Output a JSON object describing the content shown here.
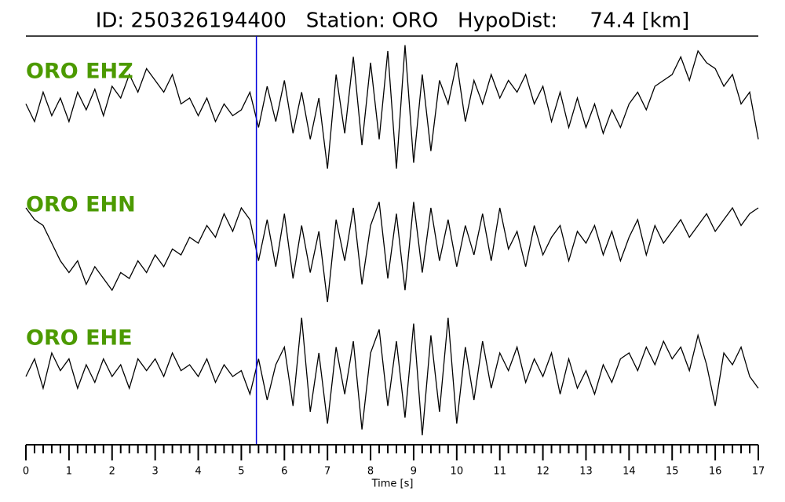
{
  "chart_data": {
    "type": "seismogram",
    "title": "ID: 250326194400   Station: ORO   HypoDist:     74.4 [km]",
    "xlabel": "Time [s]",
    "xlim": [
      0,
      17
    ],
    "xticks": [
      0,
      1,
      2,
      3,
      4,
      5,
      6,
      7,
      8,
      9,
      10,
      11,
      12,
      13,
      14,
      15,
      16,
      17
    ],
    "minor_per_major": 5,
    "ylim": [
      -1,
      1
    ],
    "pick_x": 5.35,
    "pick_color": "#0000dd",
    "label_color": "#4c9a00",
    "x": [
      0,
      0.2,
      0.4,
      0.6,
      0.8,
      1,
      1.2,
      1.4,
      1.6,
      1.8,
      2,
      2.2,
      2.4,
      2.6,
      2.8,
      3,
      3.2,
      3.4,
      3.6,
      3.8,
      4,
      4.2,
      4.4,
      4.6,
      4.8,
      5,
      5.2,
      5.4,
      5.6,
      5.8,
      6,
      6.2,
      6.4,
      6.6,
      6.8,
      7,
      7.2,
      7.4,
      7.6,
      7.8,
      8,
      8.2,
      8.4,
      8.6,
      8.8,
      9,
      9.2,
      9.4,
      9.6,
      9.8,
      10,
      10.2,
      10.4,
      10.6,
      10.8,
      11,
      11.2,
      11.4,
      11.6,
      11.8,
      12,
      12.2,
      12.4,
      12.6,
      12.8,
      13,
      13.2,
      13.4,
      13.6,
      13.8,
      14,
      14.2,
      14.4,
      14.6,
      14.8,
      15,
      15.2,
      15.4,
      15.6,
      15.8,
      16,
      16.2,
      16.4,
      16.6,
      16.8,
      17
    ],
    "series": [
      {
        "name": "ORO EHZ",
        "color": "#000000",
        "values": [
          0.1,
          -0.2,
          0.3,
          -0.1,
          0.2,
          -0.2,
          0.3,
          0.0,
          0.35,
          -0.1,
          0.4,
          0.2,
          0.6,
          0.3,
          0.7,
          0.5,
          0.3,
          0.6,
          0.1,
          0.2,
          -0.1,
          0.2,
          -0.2,
          0.1,
          -0.1,
          0.0,
          0.3,
          -0.3,
          0.4,
          -0.2,
          0.5,
          -0.4,
          0.3,
          -0.5,
          0.2,
          -1.0,
          0.6,
          -0.4,
          0.9,
          -0.6,
          0.8,
          -0.5,
          1.0,
          -1.0,
          1.1,
          -0.9,
          0.6,
          -0.7,
          0.5,
          0.1,
          0.8,
          -0.2,
          0.5,
          0.1,
          0.6,
          0.2,
          0.5,
          0.3,
          0.6,
          0.1,
          0.4,
          -0.2,
          0.3,
          -0.3,
          0.2,
          -0.3,
          0.1,
          -0.4,
          0.0,
          -0.3,
          0.1,
          0.3,
          0.0,
          0.4,
          0.5,
          0.6,
          0.9,
          0.5,
          1.0,
          0.8,
          0.7,
          0.4,
          0.6,
          0.1,
          0.3,
          -0.5
        ]
      },
      {
        "name": "ORO EHN",
        "color": "#000000",
        "values": [
          0.6,
          0.4,
          0.3,
          0.0,
          -0.3,
          -0.5,
          -0.3,
          -0.7,
          -0.4,
          -0.6,
          -0.8,
          -0.5,
          -0.6,
          -0.3,
          -0.5,
          -0.2,
          -0.4,
          -0.1,
          -0.2,
          0.1,
          0.0,
          0.3,
          0.1,
          0.5,
          0.2,
          0.6,
          0.4,
          -0.3,
          0.4,
          -0.4,
          0.5,
          -0.6,
          0.3,
          -0.5,
          0.2,
          -1.0,
          0.4,
          -0.3,
          0.6,
          -0.7,
          0.3,
          0.7,
          -0.6,
          0.5,
          -0.8,
          0.7,
          -0.5,
          0.6,
          -0.3,
          0.4,
          -0.4,
          0.3,
          -0.2,
          0.5,
          -0.3,
          0.6,
          -0.1,
          0.2,
          -0.4,
          0.3,
          -0.2,
          0.1,
          0.3,
          -0.3,
          0.2,
          0.0,
          0.3,
          -0.2,
          0.2,
          -0.3,
          0.1,
          0.4,
          -0.2,
          0.3,
          0.0,
          0.2,
          0.4,
          0.1,
          0.3,
          0.5,
          0.2,
          0.4,
          0.6,
          0.3,
          0.5,
          0.6
        ]
      },
      {
        "name": "ORO EHE",
        "color": "#000000",
        "values": [
          0.0,
          0.3,
          -0.2,
          0.4,
          0.1,
          0.3,
          -0.2,
          0.2,
          -0.1,
          0.3,
          0.0,
          0.2,
          -0.2,
          0.3,
          0.1,
          0.3,
          0.0,
          0.4,
          0.1,
          0.2,
          0.0,
          0.3,
          -0.1,
          0.2,
          0.0,
          0.1,
          -0.3,
          0.3,
          -0.4,
          0.2,
          0.5,
          -0.5,
          1.0,
          -0.6,
          0.4,
          -0.8,
          0.5,
          -0.3,
          0.6,
          -0.9,
          0.4,
          0.8,
          -0.5,
          0.6,
          -0.7,
          0.9,
          -1.0,
          0.7,
          -0.6,
          1.0,
          -0.8,
          0.5,
          -0.4,
          0.6,
          -0.2,
          0.4,
          0.1,
          0.5,
          -0.1,
          0.3,
          0.0,
          0.4,
          -0.3,
          0.3,
          -0.2,
          0.1,
          -0.3,
          0.2,
          -0.1,
          0.3,
          0.4,
          0.1,
          0.5,
          0.2,
          0.6,
          0.3,
          0.5,
          0.1,
          0.7,
          0.2,
          -0.5,
          0.4,
          0.2,
          0.5,
          0.0,
          -0.2
        ]
      }
    ]
  }
}
